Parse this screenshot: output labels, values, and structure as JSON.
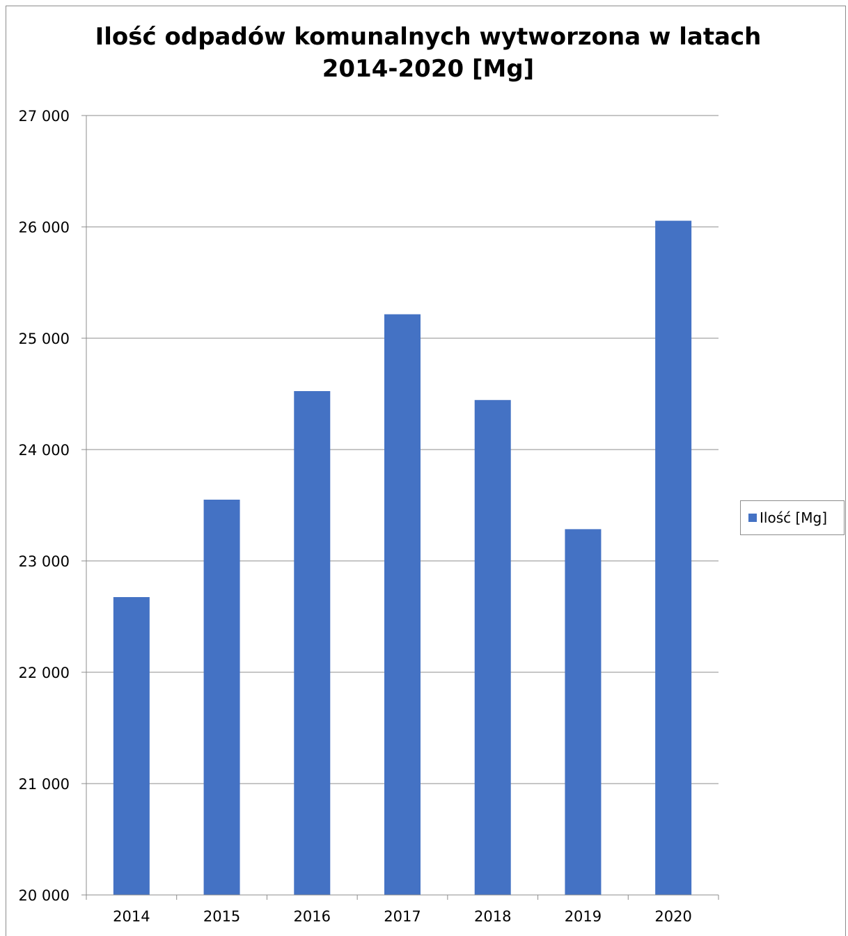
{
  "chart_data": {
    "type": "bar",
    "title": [
      "Ilość odpadów komunalnych wytworzona w latach",
      "2014-2020 [Mg]"
    ],
    "categories": [
      "2014",
      "2015",
      "2016",
      "2017",
      "2018",
      "2019",
      "2020"
    ],
    "series": [
      {
        "name": "Ilość [Mg]",
        "values": [
          22675,
          23550,
          24525,
          25215,
          24445,
          23285,
          26055
        ],
        "color": "#4472c4"
      }
    ],
    "xlabel": "",
    "ylabel": "",
    "ylim": [
      20000,
      27000
    ],
    "yticks": [
      20000,
      21000,
      22000,
      23000,
      24000,
      25000,
      26000,
      27000
    ],
    "ytick_labels": [
      "20 000",
      "21 000",
      "22 000",
      "23 000",
      "24 000",
      "25 000",
      "26 000",
      "27 000"
    ],
    "grid": true,
    "legend": "right"
  }
}
